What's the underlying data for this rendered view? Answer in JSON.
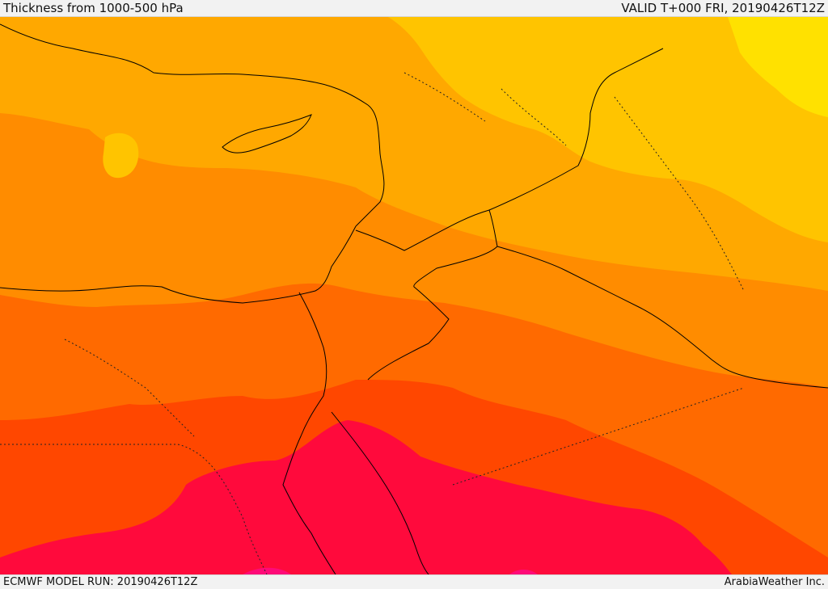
{
  "header": {
    "title": "Thickness from 1000-500 hPa",
    "valid": "VALID T+000 FRI, 20190426T12Z"
  },
  "footer": {
    "model_run": "ECMWF MODEL RUN: 20190426T12Z",
    "credit": "ArabiaWeather Inc."
  },
  "map": {
    "field": "1000-500 hPa thickness",
    "colors": {
      "band_1_lightest": "#ffe100",
      "band_2": "#ffc400",
      "band_3": "#ffa800",
      "band_4": "#ff8c00",
      "band_5": "#ff6a00",
      "band_6": "#ff4700",
      "band_7": "#ff0a3c",
      "band_8_highest": "#ff0a78",
      "borders": "#000000"
    },
    "gradient_direction": "colder north-east, warmer south"
  }
}
